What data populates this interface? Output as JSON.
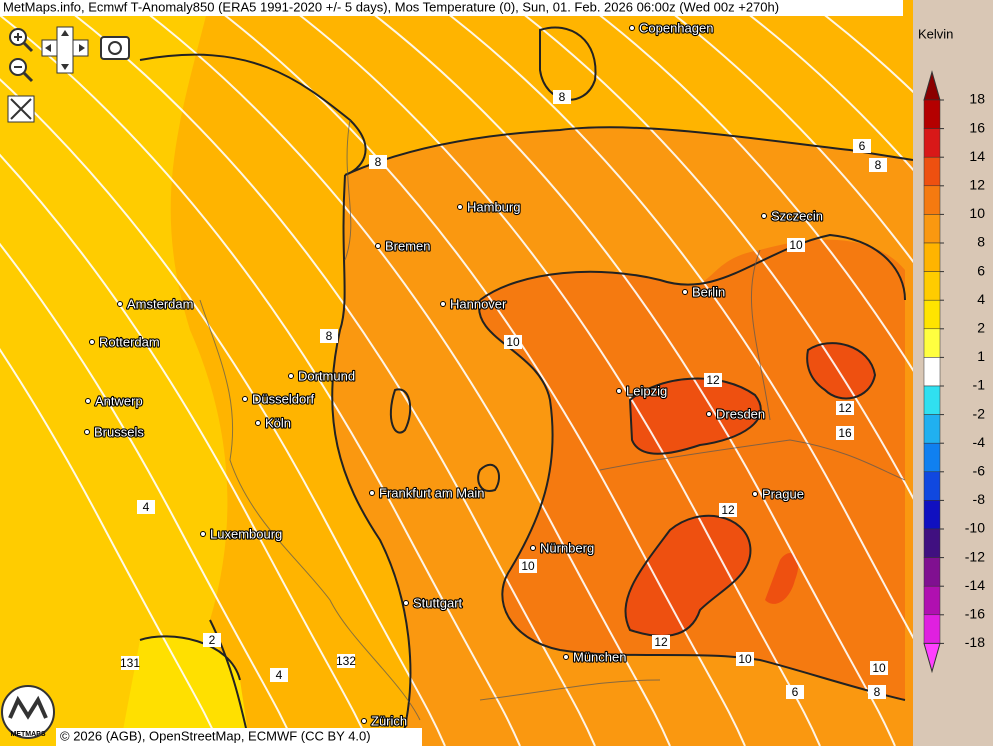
{
  "header": {
    "title": "MetMaps.info, Ecmwf T-Anomaly850 (ERA5 1991-2020 +/- 5 days), Mos Temperature (0), Sun, 01. Feb. 2026 06:00z (Wed 00z +270h)"
  },
  "cities": [
    "Copenhagen",
    "Hamburg",
    "Bremen",
    "Szczecin",
    "Amsterdam",
    "Hannover",
    "Berlin",
    "Rotterdam",
    "Dortmund",
    "Leipzig",
    "Antwerp",
    "Düsseldorf",
    "Dresden",
    "Brussels",
    "Köln",
    "Prague",
    "Frankfurt am Main",
    "Luxembourg",
    "Nürnberg",
    "Stuttgart",
    "München",
    "Zürich"
  ],
  "contour_labels": [
    "8",
    "8",
    "6",
    "8",
    "10",
    "10",
    "12",
    "12",
    "16",
    "12",
    "10",
    "12",
    "10",
    "10",
    "4",
    "2",
    "131",
    "132",
    "6",
    "8",
    "4",
    "8"
  ],
  "colorbar": {
    "unit": "Kelvin",
    "ticks": [
      18,
      16,
      14,
      12,
      10,
      8,
      6,
      4,
      2,
      1,
      -1,
      -2,
      -4,
      -6,
      -8,
      -10,
      -12,
      -14,
      -16,
      -18
    ],
    "colors": [
      "#8b0000",
      "#b40000",
      "#d81818",
      "#ee5010",
      "#f57a10",
      "#fa9810",
      "#ffb400",
      "#ffcc00",
      "#ffe400",
      "#ffff40",
      "#ffffff",
      "#30e0f0",
      "#20b0f0",
      "#1080f0",
      "#1048e0",
      "#1010c0",
      "#401080",
      "#801090",
      "#b010b0",
      "#e020e0",
      "#ff40ff"
    ]
  },
  "logo": "METMAPS",
  "footer": "© 2026 (AGB), OpenStreetMap, ECMWF (CC BY 4.0)"
}
